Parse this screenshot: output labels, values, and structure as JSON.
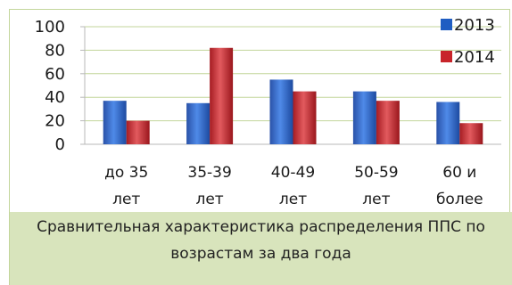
{
  "chart_data": {
    "type": "bar",
    "categories": [
      [
        "до 35",
        "лет"
      ],
      [
        "35-39",
        "лет"
      ],
      [
        "40-49",
        "лет"
      ],
      [
        "50-59",
        "лет"
      ],
      [
        "60 и",
        "более"
      ]
    ],
    "series": [
      {
        "name": "2013",
        "values": [
          37,
          35,
          55,
          45,
          36
        ],
        "color": "#1f5dc2"
      },
      {
        "name": "2014",
        "values": [
          20,
          82,
          45,
          37,
          18
        ],
        "color": "#c8242a"
      }
    ],
    "ylim": [
      0,
      100
    ],
    "yticks": [
      0,
      20,
      40,
      60,
      80,
      100
    ],
    "grid": true,
    "legend": "top-right"
  },
  "caption": {
    "line1": "Сравнительная характеристика распределения ППС по",
    "line2": "возрастам за два года"
  }
}
